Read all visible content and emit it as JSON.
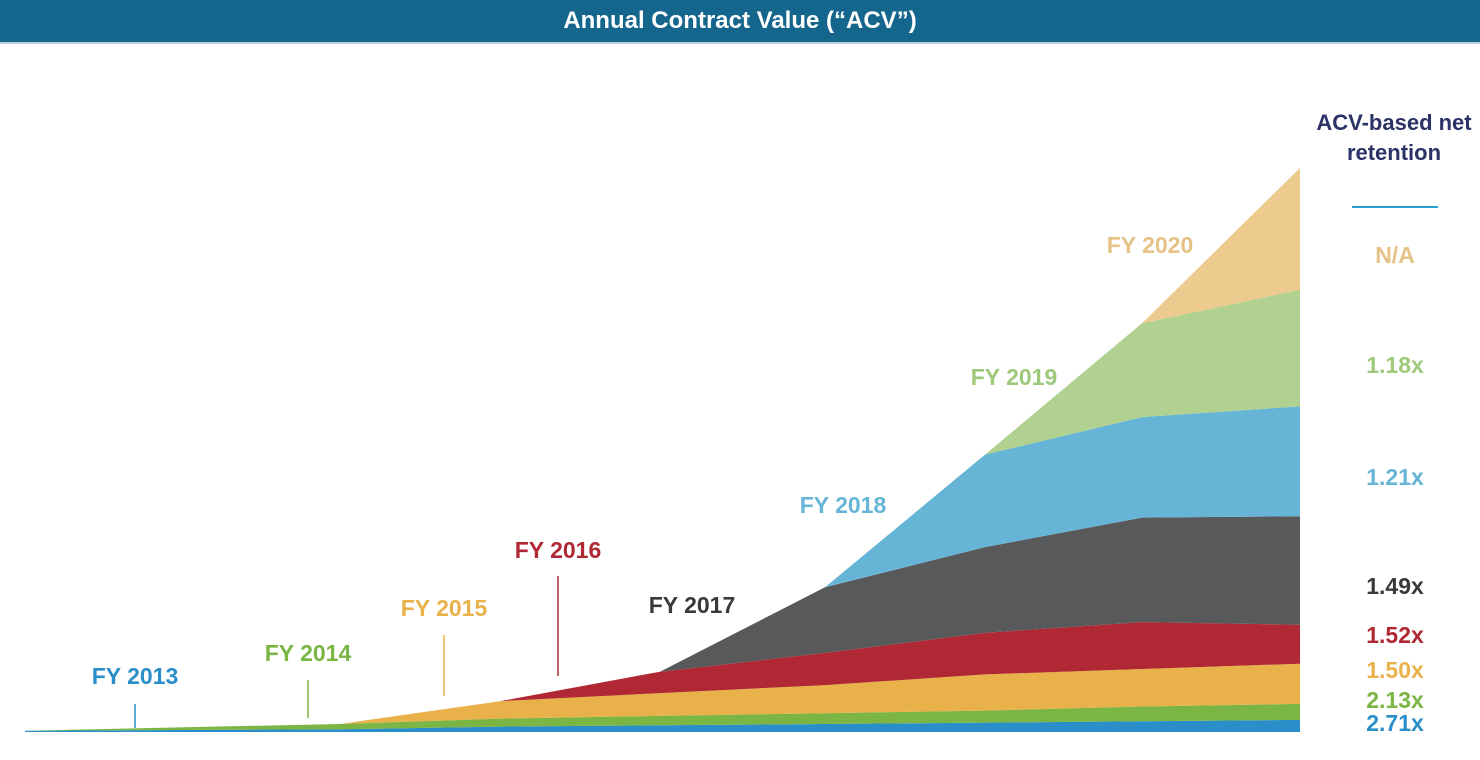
{
  "header": {
    "title": "Annual Contract Value (“ACV”)"
  },
  "retention_header": "ACV-based net retention",
  "colors": {
    "banner": "#14668c",
    "FY 2013": "#2a8fc8",
    "FY 2014": "#7bb544",
    "FY 2015": "#e8b14a",
    "FY 2016": "#b02834",
    "FY 2017": "#58595b",
    "FY 2018": "#66b5d6",
    "FY 2019": "#b0d18f",
    "FY 2020": "#edcb8e"
  },
  "label_colors": {
    "FY 2013": "#2a8fc8",
    "FY 2014": "#7bb544",
    "FY 2015": "#e8b14a",
    "FY 2016": "#b02834",
    "FY 2017": "#3a3a3a",
    "FY 2018": "#66b5d6",
    "FY 2019": "#9ec97a",
    "FY 2020": "#e5c285"
  },
  "chart_data": {
    "type": "area",
    "stacked": true,
    "title": "Annual Contract Value (“ACV”)",
    "x": [
      "FY 2013",
      "FY 2014",
      "FY 2015",
      "FY 2016",
      "FY 2017",
      "FY 2018",
      "FY 2019",
      "FY 2020"
    ],
    "series": [
      {
        "name": "FY 2013",
        "values": [
          1,
          2,
          4,
          5,
          6,
          7,
          8,
          9
        ],
        "net_retention": "2.71x"
      },
      {
        "name": "FY 2014",
        "values": [
          0,
          4,
          6,
          7,
          8,
          9,
          11,
          12
        ],
        "net_retention": "2.13x"
      },
      {
        "name": "FY 2015",
        "values": [
          0,
          0,
          13,
          17,
          21,
          27,
          28,
          30
        ],
        "net_retention": "1.50x"
      },
      {
        "name": "FY 2016",
        "values": [
          0,
          0,
          0,
          16,
          24,
          31,
          35,
          29
        ],
        "net_retention": "1.52x"
      },
      {
        "name": "FY 2017",
        "values": [
          0,
          0,
          0,
          0,
          49,
          64,
          78,
          81
        ],
        "net_retention": "1.49x"
      },
      {
        "name": "FY 2018",
        "values": [
          0,
          0,
          0,
          0,
          0,
          69,
          75,
          82
        ],
        "net_retention": "1.21x"
      },
      {
        "name": "FY 2019",
        "values": [
          0,
          0,
          0,
          0,
          0,
          0,
          70,
          87
        ],
        "net_retention": "1.18x"
      },
      {
        "name": "FY 2020",
        "values": [
          0,
          0,
          0,
          0,
          0,
          0,
          0,
          91
        ],
        "net_retention": "N/A"
      }
    ],
    "retention_labels": [
      "N/A",
      "1.18x",
      "1.21x",
      "1.49x",
      "1.52x",
      "1.50x",
      "2.13x",
      "2.71x"
    ],
    "grid": false,
    "legend": "none"
  }
}
